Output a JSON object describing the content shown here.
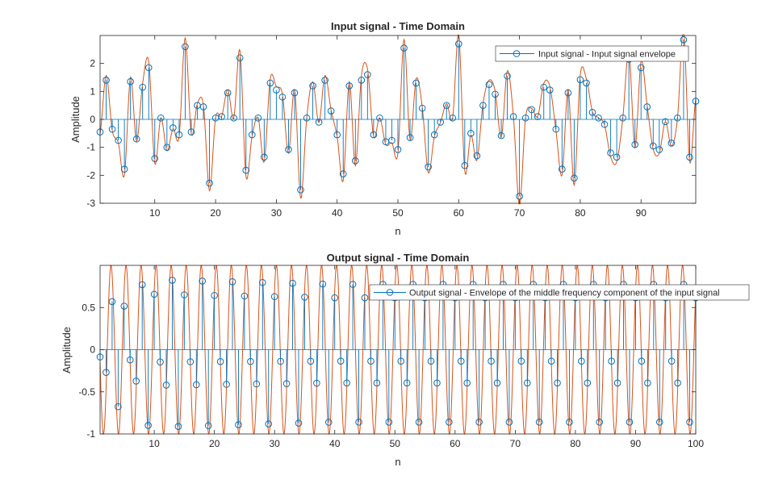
{
  "chart_data": [
    {
      "type": "line",
      "subtype": "stem-with-envelope",
      "title": "Input signal - Time Domain",
      "xlabel": "n",
      "ylabel": "Amplitude",
      "xlim": [
        1,
        99
      ],
      "ylim": [
        -3,
        3
      ],
      "xticks": [
        10,
        20,
        30,
        40,
        50,
        60,
        70,
        80,
        90
      ],
      "yticks": [
        -3,
        -2,
        -1,
        0,
        1,
        2
      ],
      "legend": {
        "text": "Input signal - Input signal envelope",
        "location": "top-right"
      },
      "colors": {
        "stem": "#0072BD",
        "envelope": "#D95319"
      },
      "grid": false,
      "series": [
        {
          "kind": "stem",
          "x": [
            1,
            2,
            3,
            4,
            5,
            6,
            7,
            8,
            9,
            10,
            11,
            12,
            13,
            14,
            15,
            16,
            17,
            18,
            19,
            20,
            21,
            22,
            23,
            24,
            25,
            26,
            27,
            28,
            29,
            30,
            31,
            32,
            33,
            34,
            35,
            36,
            37,
            38,
            39,
            40,
            41,
            42,
            43,
            44,
            45,
            46,
            47,
            48,
            49,
            50,
            51,
            52,
            53,
            54,
            55,
            56,
            57,
            58,
            59,
            60,
            61,
            62,
            63,
            64,
            65,
            66,
            67,
            68,
            69,
            70,
            71,
            72,
            73,
            74,
            75,
            76,
            77,
            78,
            79,
            80,
            81,
            82,
            83,
            84,
            85,
            86,
            87,
            88,
            89,
            90,
            91,
            92,
            93,
            94,
            95,
            96,
            97,
            98,
            99
          ],
          "values": [
            -0.45,
            1.4,
            -0.35,
            -0.75,
            -1.78,
            1.35,
            -0.7,
            1.15,
            1.85,
            -1.4,
            0.05,
            -1.0,
            -0.3,
            -0.55,
            2.6,
            -0.45,
            0.5,
            0.45,
            -2.28,
            0.05,
            0.1,
            0.95,
            0.05,
            2.2,
            -1.82,
            -0.55,
            0.05,
            -1.35,
            1.3,
            1.05,
            0.8,
            -1.08,
            0.95,
            -2.52,
            0.05,
            1.2,
            -0.1,
            1.4,
            0.3,
            -0.55,
            -1.95,
            1.2,
            -1.48,
            1.4,
            1.6,
            -0.55,
            0.05,
            -0.8,
            -0.75,
            -1.08,
            2.55,
            -0.65,
            1.3,
            0.4,
            -1.7,
            -0.55,
            -0.1,
            0.5,
            0.05,
            2.7,
            -1.65,
            -0.5,
            -1.3,
            0.5,
            1.25,
            0.9,
            -0.58,
            1.55,
            0.1,
            -2.75,
            0.05,
            0.35,
            0.1,
            1.15,
            1.05,
            -0.35,
            -1.78,
            0.95,
            -2.1,
            1.42,
            1.3,
            0.25,
            0.05,
            -0.18,
            -1.2,
            -1.35,
            0.05,
            2.15,
            -0.9,
            1.85,
            0.45,
            -0.95,
            -1.08,
            -0.08,
            -0.85,
            0.05,
            2.85,
            -1.35,
            0.65
          ]
        },
        {
          "kind": "line",
          "description": "smooth interpolated envelope through the stem points"
        }
      ]
    },
    {
      "type": "line",
      "subtype": "stem-with-envelope",
      "title": "Output signal - Time Domain",
      "xlabel": "n",
      "ylabel": "Amplitude",
      "xlim": [
        1,
        100
      ],
      "ylim": [
        -1,
        1
      ],
      "xticks": [
        10,
        20,
        30,
        40,
        50,
        60,
        70,
        80,
        90,
        100
      ],
      "yticks": [
        -1,
        -0.5,
        0,
        0.5
      ],
      "legend": {
        "text": "Output signal - Envelope of the middle frequency component of the input signal",
        "location": "top-right"
      },
      "colors": {
        "stem": "#0072BD",
        "envelope": "#D95319"
      },
      "grid": false,
      "series": [
        {
          "kind": "stem",
          "model": "0.95*sin(2*pi*0.2*n + 1.5)*(n<=50) fading to 0.88 amplitude; zero every 2.5 samples",
          "x_range": [
            1,
            100
          ],
          "samples_per_period": 5,
          "peak_values": [
            0.55,
            -0.6,
            0.78,
            -0.82,
            0.92,
            -0.9,
            0.93,
            -0.9,
            0.9,
            -0.87,
            0.88,
            -0.86,
            0.87,
            -0.86,
            0.87,
            -0.86,
            0.87,
            -0.86,
            0.88,
            -0.87
          ]
        },
        {
          "kind": "line",
          "description": "sinusoidal envelope with period 5 samples and amplitude 1"
        }
      ]
    }
  ]
}
